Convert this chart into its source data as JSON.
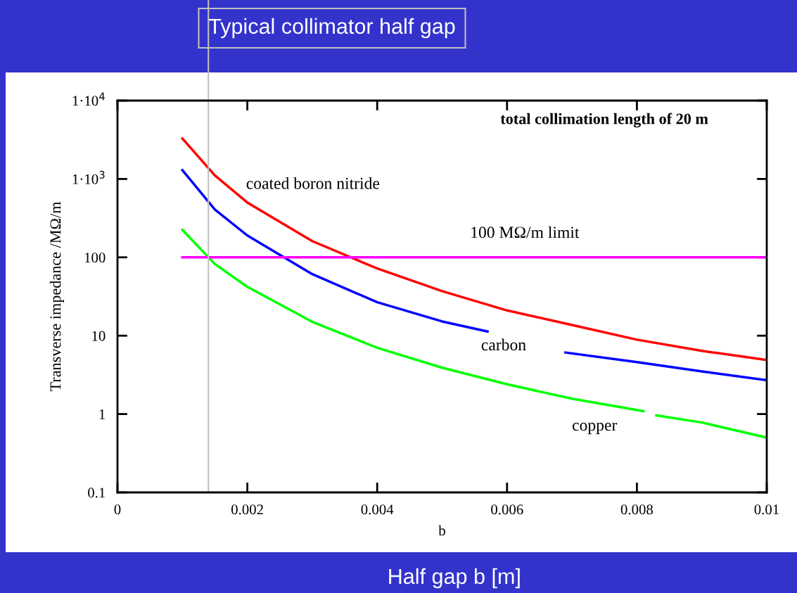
{
  "chart_data": {
    "type": "line",
    "xlabel": "b",
    "ylabel": "Transverse impedance /MΩ/m",
    "log": "y",
    "grid": false,
    "legend": false,
    "marker": "none",
    "line_style": "solid",
    "xlim": [
      0,
      0.01
    ],
    "xticks": [
      0,
      0.002,
      0.004,
      0.006,
      0.008,
      0.01
    ],
    "ylim": [
      0.1,
      10000
    ],
    "yticks": [
      {
        "value": 0.1,
        "label": "0.1"
      },
      {
        "value": 1,
        "label": "1"
      },
      {
        "value": 10,
        "label": "10"
      },
      {
        "value": 100,
        "label": "100"
      },
      {
        "value": 1000,
        "label": "1·10$^{3}$"
      },
      {
        "value": 10000,
        "label": "1·10$^{4}$"
      }
    ],
    "series": [
      {
        "name": "coated boron nitride",
        "color": "#ff0000",
        "x": [
          0.001,
          0.0015,
          0.002,
          0.003,
          0.004,
          0.005,
          0.006,
          0.007,
          0.008,
          0.009,
          0.01
        ],
        "values": [
          3280,
          1110,
          500,
          161,
          72,
          37,
          21,
          13.7,
          8.9,
          6.4,
          4.9
        ]
      },
      {
        "name": "carbon",
        "color": "#0000ff",
        "x": [
          0.001,
          0.0015,
          0.002,
          0.003,
          0.004,
          0.005,
          0.0057,
          0.0063,
          0.0069,
          0.008,
          0.009,
          0.01
        ],
        "values": [
          1295,
          408,
          190,
          61,
          26.7,
          15.2,
          11.3,
          null,
          6.1,
          4.6,
          3.5,
          2.7
        ]
      },
      {
        "name": "copper",
        "color": "#00ff00",
        "x": [
          0.001,
          0.0015,
          0.002,
          0.003,
          0.004,
          0.005,
          0.006,
          0.007,
          0.0081,
          0.0082,
          0.0083,
          0.009,
          0.01
        ],
        "values": [
          224,
          82,
          42,
          15,
          7,
          3.9,
          2.4,
          1.57,
          1.09,
          null,
          0.96,
          0.78,
          0.5
        ]
      },
      {
        "name": "100 MΩ/m limit",
        "color": "#ff00ff",
        "x": [
          0.001,
          0.01
        ],
        "values": [
          100,
          100
        ]
      }
    ],
    "ref_lines": [
      {
        "axis": "x",
        "value": 0.0014,
        "label": "Typical collimator half gap",
        "color": "#c0c0c0"
      }
    ],
    "annotations": [
      "total collimation length of 20 m",
      "Half gap b [m]"
    ]
  }
}
